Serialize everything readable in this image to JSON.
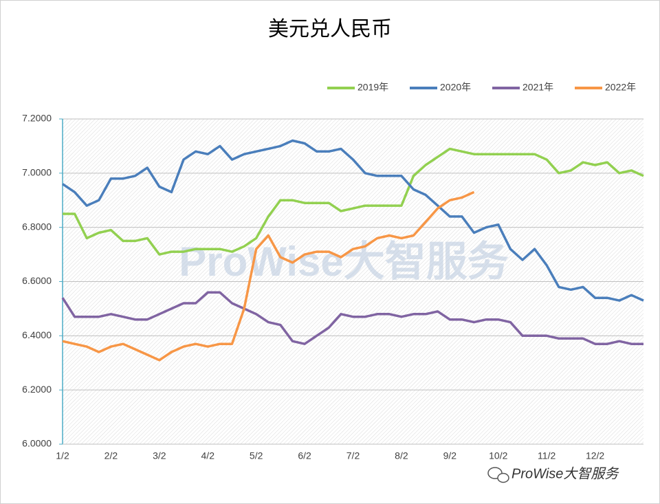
{
  "chart_data": {
    "type": "line",
    "title": "美元兑人民币",
    "watermark": "ProWise大智服务",
    "footer": "ProWise大智服务",
    "categories": [
      "1/2",
      null,
      null,
      null,
      "2/2",
      null,
      null,
      null,
      "3/2",
      null,
      null,
      null,
      "4/2",
      null,
      null,
      null,
      "5/2",
      null,
      null,
      null,
      "6/2",
      null,
      null,
      null,
      "7/2",
      null,
      null,
      null,
      "8/2",
      null,
      null,
      null,
      "9/2",
      null,
      null,
      null,
      "10/2",
      null,
      null,
      null,
      "11/2",
      null,
      null,
      null,
      "12/2",
      null,
      null,
      null,
      null
    ],
    "series": [
      {
        "name": "2019年",
        "color": "#92d050",
        "values": [
          6.85,
          6.85,
          6.76,
          6.78,
          6.79,
          6.75,
          6.75,
          6.76,
          6.7,
          6.71,
          6.71,
          6.72,
          6.72,
          6.72,
          6.71,
          6.73,
          6.76,
          6.84,
          6.9,
          6.9,
          6.89,
          6.89,
          6.89,
          6.86,
          6.87,
          6.88,
          6.88,
          6.88,
          6.88,
          6.99,
          7.03,
          7.06,
          7.09,
          7.08,
          7.07,
          7.07,
          7.07,
          7.07,
          7.07,
          7.07,
          7.05,
          7.0,
          7.01,
          7.04,
          7.03,
          7.04,
          7.0,
          7.01,
          6.99
        ]
      },
      {
        "name": "2020年",
        "color": "#4a7ebb",
        "values": [
          6.96,
          6.93,
          6.88,
          6.9,
          6.98,
          6.98,
          6.99,
          7.02,
          6.95,
          6.93,
          7.05,
          7.08,
          7.07,
          7.1,
          7.05,
          7.07,
          7.08,
          7.09,
          7.1,
          7.12,
          7.11,
          7.08,
          7.08,
          7.09,
          7.05,
          7.0,
          6.99,
          6.99,
          6.99,
          6.94,
          6.92,
          6.88,
          6.84,
          6.84,
          6.78,
          6.8,
          6.81,
          6.72,
          6.68,
          6.72,
          6.66,
          6.58,
          6.57,
          6.58,
          6.54,
          6.54,
          6.53,
          6.55,
          6.53
        ]
      },
      {
        "name": "2021年",
        "color": "#8064a2",
        "values": [
          6.54,
          6.47,
          6.47,
          6.47,
          6.48,
          6.47,
          6.46,
          6.46,
          6.48,
          6.5,
          6.52,
          6.52,
          6.56,
          6.56,
          6.52,
          6.5,
          6.48,
          6.45,
          6.44,
          6.38,
          6.37,
          6.4,
          6.43,
          6.48,
          6.47,
          6.47,
          6.48,
          6.48,
          6.47,
          6.48,
          6.48,
          6.49,
          6.46,
          6.46,
          6.45,
          6.46,
          6.46,
          6.45,
          6.4,
          6.4,
          6.4,
          6.39,
          6.39,
          6.39,
          6.37,
          6.37,
          6.38,
          6.37,
          6.37
        ]
      },
      {
        "name": "2022年",
        "color": "#f79646",
        "values": [
          6.38,
          6.37,
          6.36,
          6.34,
          6.36,
          6.37,
          6.35,
          6.33,
          6.31,
          6.34,
          6.36,
          6.37,
          6.36,
          6.37,
          6.37,
          6.5,
          6.72,
          6.77,
          6.69,
          6.67,
          6.7,
          6.71,
          6.71,
          6.69,
          6.72,
          6.73,
          6.76,
          6.77,
          6.76,
          6.77,
          6.82,
          6.87,
          6.9,
          6.91,
          6.93,
          null,
          null,
          null,
          null,
          null,
          null,
          null,
          null,
          null,
          null,
          null,
          null,
          null,
          null
        ]
      }
    ],
    "ylim": [
      6.0,
      7.2
    ],
    "yticks": [
      {
        "value": 6.0,
        "label": "6.0000"
      },
      {
        "value": 6.2,
        "label": "6.2000"
      },
      {
        "value": 6.4,
        "label": "6.4000"
      },
      {
        "value": 6.6,
        "label": "6.6000"
      },
      {
        "value": 6.8,
        "label": "6.8000"
      },
      {
        "value": 7.0,
        "label": "7.0000"
      },
      {
        "value": 7.2,
        "label": "7.2000"
      }
    ],
    "grid": true,
    "legend": "top-right"
  }
}
